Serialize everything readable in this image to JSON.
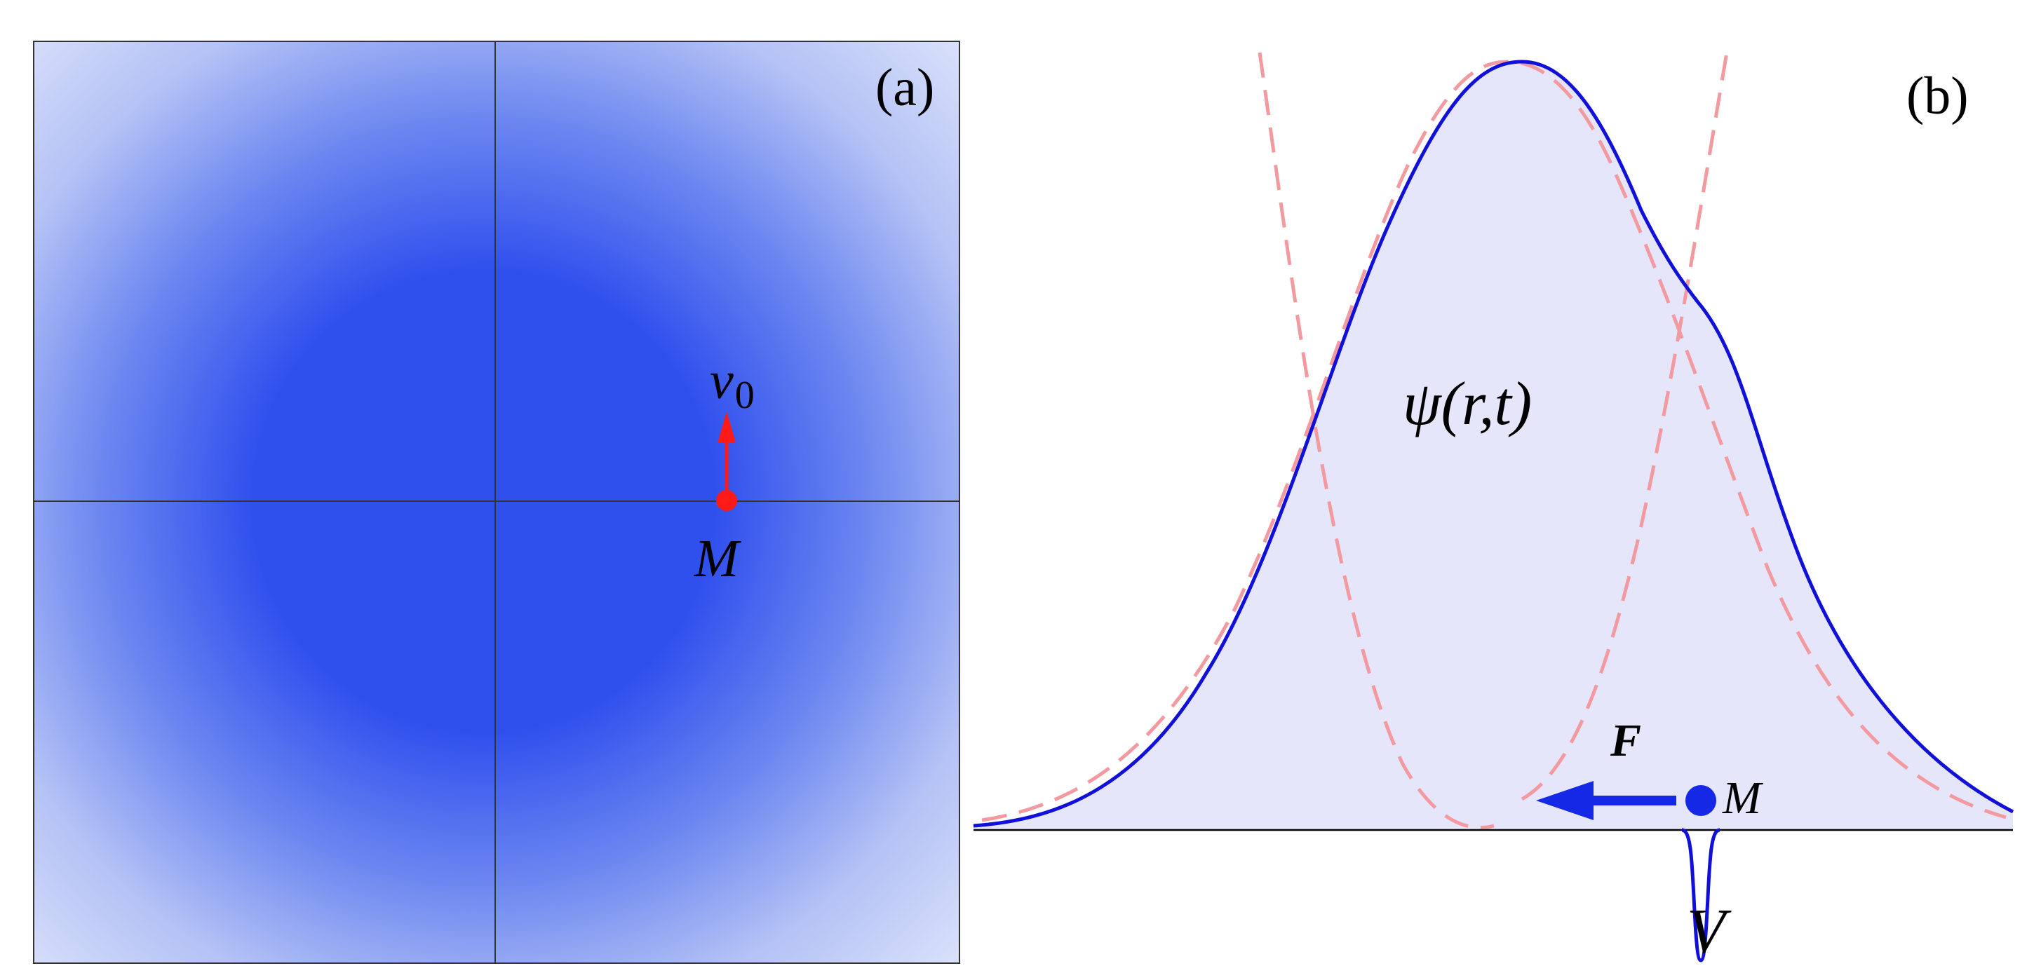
{
  "panel_a": {
    "label": "(a)",
    "point_label": "M",
    "velocity_symbol": "v",
    "velocity_subscript": "0",
    "colors": {
      "density_center": "#3050ee",
      "density_edge": "#dce4fa",
      "frame": "#333333",
      "axes": "#333333",
      "particle": "#ff1a1a",
      "velocity_arrow": "#ff1a1a"
    }
  },
  "panel_b": {
    "label": "(b)",
    "wavefunction_label": "ψ(r,t)",
    "force_label": "F",
    "point_label": "M",
    "potential_label": "V",
    "colors": {
      "wavefunction_curve": "#1010d8",
      "wavefunction_fill": "#e6e6fa",
      "dashed_curves": "#f39aa0",
      "baseline": "#000000",
      "force_arrow": "#1428e6",
      "particle": "#1428e6",
      "potential_curve": "#1010d8"
    }
  }
}
